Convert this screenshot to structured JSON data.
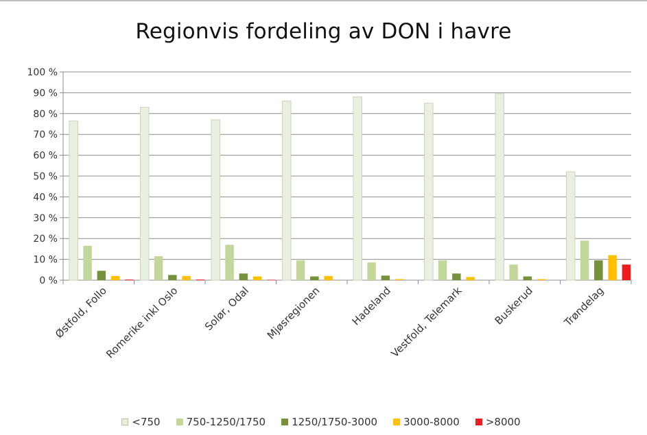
{
  "chart_data": {
    "type": "bar",
    "title": "Regionvis fordeling av DON i havre",
    "xlabel": "",
    "ylabel": "",
    "ylim": [
      0,
      100
    ],
    "yticks": [
      "0 %",
      "10 %",
      "20 %",
      "30 %",
      "40 %",
      "50 %",
      "60 %",
      "70 %",
      "80 %",
      "90 %",
      "100 %"
    ],
    "categories": [
      "Østfold, Follo",
      "Romerike inkl Oslo",
      "Solør, Odal",
      "Mjøsregionen",
      "Hadeland",
      "Vestfold, Telemark",
      "Buskerud",
      "Trøndelag"
    ],
    "series": [
      {
        "name": "<750",
        "color": "#e9f0df",
        "values": [
          76.5,
          83,
          77,
          86,
          88,
          85,
          89.5,
          52
        ]
      },
      {
        "name": "750-1250/1750",
        "color": "#c3d79b",
        "values": [
          16.5,
          11.5,
          17,
          9.5,
          8.5,
          9.5,
          7.5,
          19
        ]
      },
      {
        "name": "1250/1750-3000",
        "color": "#76923c",
        "values": [
          4.5,
          2.5,
          3.2,
          1.8,
          2.2,
          3.2,
          1.8,
          9.5
        ]
      },
      {
        "name": "3000-8000",
        "color": "#ffc000",
        "values": [
          2,
          2,
          1.8,
          2,
          0.5,
          1.5,
          0.5,
          12
        ]
      },
      {
        "name": ">8000",
        "color": "#ee1c1c",
        "values": [
          0.3,
          0.3,
          0.2,
          0,
          0,
          0,
          0,
          7.5
        ]
      }
    ],
    "grid": true,
    "legend": "bottom"
  }
}
